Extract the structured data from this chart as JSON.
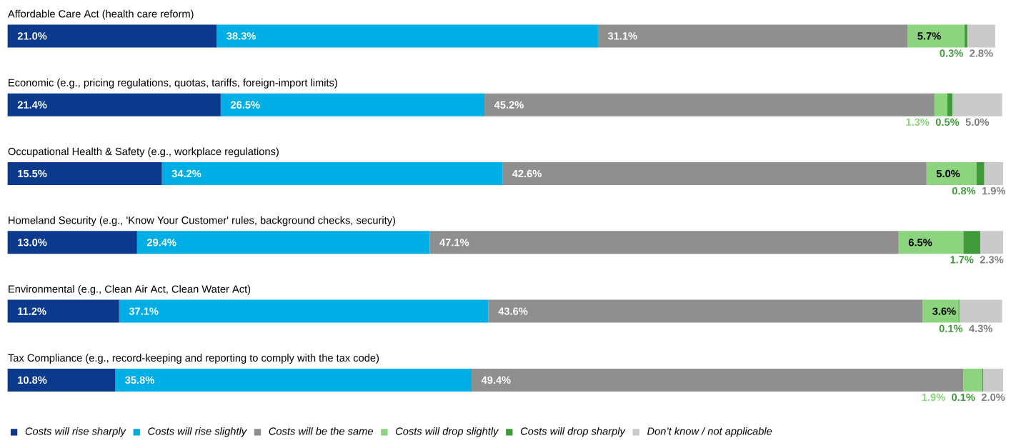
{
  "chart_data": {
    "type": "bar",
    "orientation": "horizontal",
    "stacked": true,
    "legend": "bottom",
    "categories": [
      "Affordable Care Act (health care reform)",
      "Economic (e.g., pricing regulations, quotas, tariffs, foreign-import limits)",
      "Occupational Health & Safety (e.g., workplace regulations)",
      "Homeland Security (e.g., 'Know Your Customer' rules, background checks, security)",
      "Environmental (e.g., Clean Air Act, Clean Water Act)",
      "Tax Compliance (e.g., record-keeping and reporting to comply with the tax code)"
    ],
    "series": [
      {
        "name": "Costs will rise sharply",
        "color": "#0b3a8c",
        "values": [
          21.0,
          21.4,
          15.5,
          13.0,
          11.2,
          10.8
        ],
        "value_labels": [
          "21.0%",
          "21.4%",
          "15.5%",
          "13.0%",
          "11.2%",
          "10.8%"
        ]
      },
      {
        "name": "Costs will rise slightly",
        "color": "#00aee6",
        "values": [
          38.3,
          26.5,
          34.2,
          29.4,
          37.1,
          35.8
        ],
        "value_labels": [
          "38.3%",
          "26.5%",
          "34.2%",
          "29.4%",
          "37.1%",
          "35.8%"
        ]
      },
      {
        "name": "Costs will be the same",
        "color": "#8f8f8f",
        "values": [
          31.1,
          45.2,
          42.6,
          47.1,
          43.6,
          49.4
        ],
        "value_labels": [
          "31.1%",
          "45.2%",
          "42.6%",
          "47.1%",
          "43.6%",
          "49.4%"
        ]
      },
      {
        "name": "Costs will drop slightly",
        "color": "#8cd47e",
        "values": [
          5.7,
          1.3,
          5.0,
          6.5,
          3.6,
          1.9
        ],
        "value_labels": [
          "5.7%",
          "1.3%",
          "5.0%",
          "6.5%",
          "3.6%",
          "1.9%"
        ]
      },
      {
        "name": "Costs will drop sharply",
        "color": "#3f9b3a",
        "values": [
          0.3,
          0.5,
          0.8,
          1.7,
          0.1,
          0.1
        ],
        "value_labels": [
          "0.3%",
          "0.5%",
          "0.8%",
          "1.7%",
          "0.1%",
          "0.1%"
        ]
      },
      {
        "name": "Don’t know / not applicable",
        "color": "#cacaca",
        "values": [
          2.8,
          5.0,
          1.9,
          2.3,
          4.3,
          2.0
        ],
        "value_labels": [
          "2.8%",
          "5.0%",
          "1.9%",
          "2.3%",
          "4.3%",
          "2.0%"
        ]
      }
    ]
  }
}
